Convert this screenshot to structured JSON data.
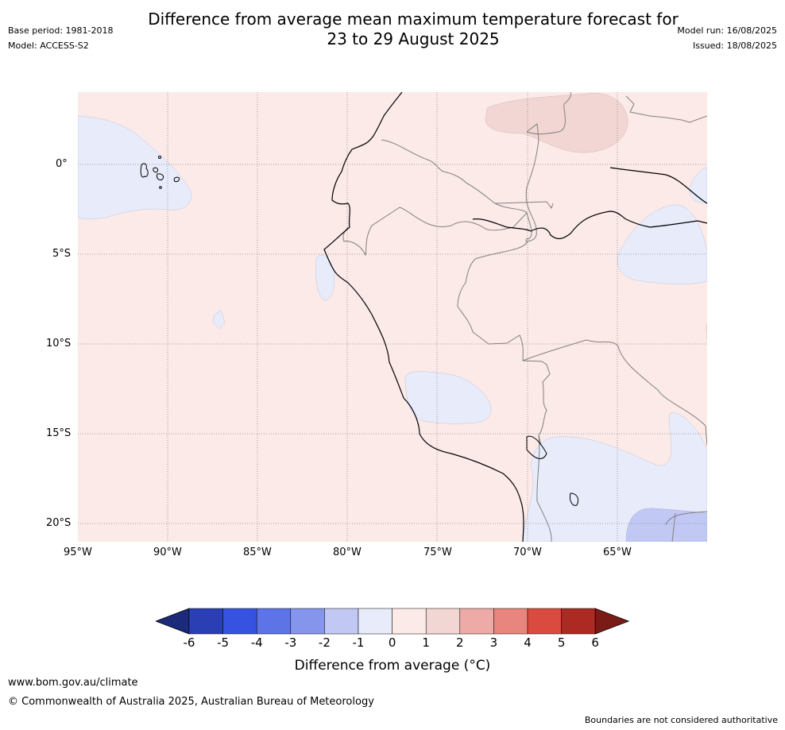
{
  "header": {
    "base_period": "Base period: 1981-2018",
    "model": "Model: ACCESS-S2",
    "model_run": "Model run: 16/08/2025",
    "issued": "Issued: 18/08/2025",
    "title_line1": "Difference from average mean maximum temperature forecast for",
    "title_line2": "23 to 29 August 2025"
  },
  "map": {
    "lon_labels": [
      "95°W",
      "90°W",
      "85°W",
      "80°W",
      "75°W",
      "70°W",
      "65°W"
    ],
    "lat_labels": [
      "0°",
      "5°S",
      "10°S",
      "15°S",
      "20°S"
    ],
    "colors": {
      "background_anomaly": "#fbeae8",
      "slightly_cool": "#e8ebfa",
      "cool": "#c2c8f4",
      "warm": "#f2d6d3",
      "coast": "#000000",
      "border": "#808080",
      "grid": "#888888"
    }
  },
  "colorbar": {
    "ticks": [
      "-6",
      "-5",
      "-4",
      "-3",
      "-2",
      "-1",
      "0",
      "1",
      "2",
      "3",
      "4",
      "5",
      "6"
    ],
    "colors": [
      "#1c2a7a",
      "#2a3fb3",
      "#3652e0",
      "#5d74e6",
      "#8595ec",
      "#c2c8f4",
      "#e8ebfa",
      "#fbeae8",
      "#f2d6d3",
      "#eeaaa6",
      "#e8857c",
      "#db4a3e",
      "#ad2a22",
      "#7a1c16"
    ],
    "label": "Difference from average (",
    "label_unit": "°C)"
  },
  "footer": {
    "website": "www.bom.gov.au/climate",
    "copyright": "© Commonwealth of Australia 2025, Australian Bureau of Meteorology",
    "disclaimer": "Boundaries are not considered authoritative"
  }
}
